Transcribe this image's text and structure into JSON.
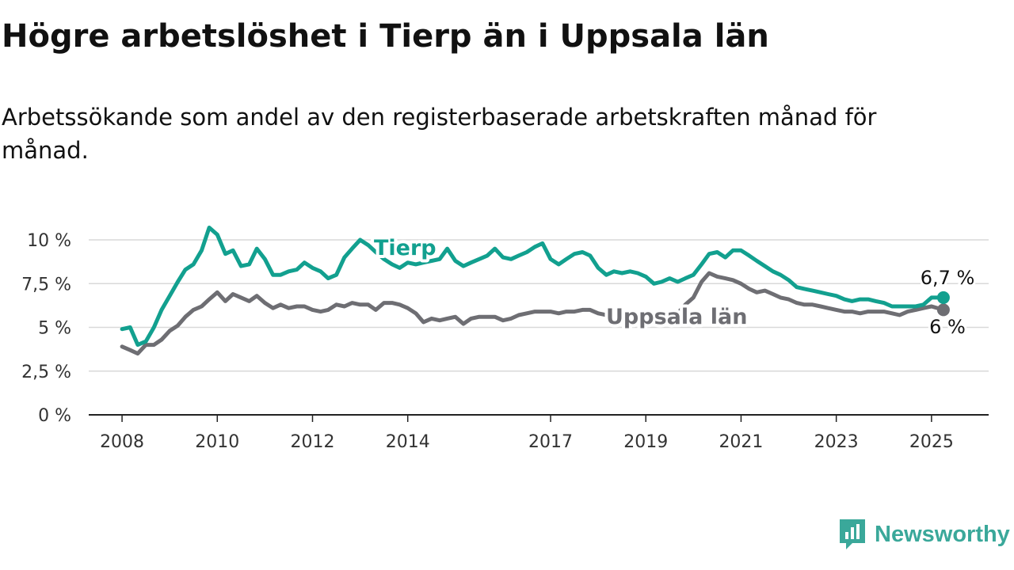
{
  "title": "Högre arbetslöshet i Tierp än i Uppsala län",
  "subtitle": "Arbetssökande som andel av den registerbaserade arbetskraften månad för månad.",
  "brand": {
    "name": "Newsworthy",
    "logo_icon": "newsworthy-bar-chart-icon",
    "color": "#3aa89a"
  },
  "chart_data": {
    "type": "line",
    "xlabel": "",
    "ylabel": "",
    "xlim": [
      2007.3,
      2026.2
    ],
    "ylim": [
      0,
      10
    ],
    "y_ticks": [
      {
        "value": 0,
        "label": "0 %"
      },
      {
        "value": 2.5,
        "label": "2,5 %"
      },
      {
        "value": 5,
        "label": "5 %"
      },
      {
        "value": 7.5,
        "label": "7,5 %"
      },
      {
        "value": 10,
        "label": "10 %"
      }
    ],
    "x_ticks": [
      {
        "value": 2008,
        "label": "2008"
      },
      {
        "value": 2010,
        "label": "2010"
      },
      {
        "value": 2012,
        "label": "2012"
      },
      {
        "value": 2014,
        "label": "2014"
      },
      {
        "value": 2017,
        "label": "2017"
      },
      {
        "value": 2019,
        "label": "2019"
      },
      {
        "value": 2021,
        "label": "2021"
      },
      {
        "value": 2023,
        "label": "2023"
      },
      {
        "value": 2025,
        "label": "2025"
      }
    ],
    "grid": "horizontal",
    "legend": "inline labels",
    "series": [
      {
        "name": "Tierp",
        "color": "#12a08f",
        "end_label": "6,7 %",
        "x": [
          2008.0,
          2008.17,
          2008.33,
          2008.5,
          2008.67,
          2008.83,
          2009.0,
          2009.17,
          2009.33,
          2009.5,
          2009.67,
          2009.83,
          2010.0,
          2010.17,
          2010.33,
          2010.5,
          2010.67,
          2010.83,
          2011.0,
          2011.17,
          2011.33,
          2011.5,
          2011.67,
          2011.83,
          2012.0,
          2012.17,
          2012.33,
          2012.5,
          2012.67,
          2012.83,
          2013.0,
          2013.17,
          2013.33,
          2013.5,
          2013.67,
          2013.83,
          2014.0,
          2014.17,
          2014.33,
          2014.5,
          2014.67,
          2014.83,
          2015.0,
          2015.17,
          2015.33,
          2015.5,
          2015.67,
          2015.83,
          2016.0,
          2016.17,
          2016.33,
          2016.5,
          2016.67,
          2016.83,
          2017.0,
          2017.17,
          2017.33,
          2017.5,
          2017.67,
          2017.83,
          2018.0,
          2018.17,
          2018.33,
          2018.5,
          2018.67,
          2018.83,
          2019.0,
          2019.17,
          2019.33,
          2019.5,
          2019.67,
          2019.83,
          2020.0,
          2020.17,
          2020.33,
          2020.5,
          2020.67,
          2020.83,
          2021.0,
          2021.17,
          2021.33,
          2021.5,
          2021.67,
          2021.83,
          2022.0,
          2022.17,
          2022.33,
          2022.5,
          2022.67,
          2022.83,
          2023.0,
          2023.17,
          2023.33,
          2023.5,
          2023.67,
          2023.83,
          2024.0,
          2024.17,
          2024.33,
          2024.5,
          2024.67,
          2024.83,
          2025.0,
          2025.25
        ],
        "y": [
          4.9,
          5.0,
          4.0,
          4.2,
          5.0,
          6.0,
          6.8,
          7.6,
          8.3,
          8.6,
          9.4,
          10.7,
          10.3,
          9.2,
          9.4,
          8.5,
          8.6,
          9.5,
          8.9,
          8.0,
          8.0,
          8.2,
          8.3,
          8.7,
          8.4,
          8.2,
          7.8,
          8.0,
          9.0,
          9.5,
          10.0,
          9.7,
          9.3,
          8.9,
          8.6,
          8.4,
          8.7,
          8.6,
          8.7,
          8.8,
          8.9,
          9.5,
          8.8,
          8.5,
          8.7,
          8.9,
          9.1,
          9.5,
          9.0,
          8.9,
          9.1,
          9.3,
          9.6,
          9.8,
          8.9,
          8.6,
          8.9,
          9.2,
          9.3,
          9.1,
          8.4,
          8.0,
          8.2,
          8.1,
          8.2,
          8.1,
          7.9,
          7.5,
          7.6,
          7.8,
          7.6,
          7.8,
          8.0,
          8.6,
          9.2,
          9.3,
          9.0,
          9.4,
          9.4,
          9.1,
          8.8,
          8.5,
          8.2,
          8.0,
          7.7,
          7.3,
          7.2,
          7.1,
          7.0,
          6.9,
          6.8,
          6.6,
          6.5,
          6.6,
          6.6,
          6.5,
          6.4,
          6.2,
          6.2,
          6.2,
          6.2,
          6.3,
          6.7,
          6.7
        ]
      },
      {
        "name": "Uppsala län",
        "color": "#6e6e73",
        "end_label": "6 %",
        "x": [
          2008.0,
          2008.17,
          2008.33,
          2008.5,
          2008.67,
          2008.83,
          2009.0,
          2009.17,
          2009.33,
          2009.5,
          2009.67,
          2009.83,
          2010.0,
          2010.17,
          2010.33,
          2010.5,
          2010.67,
          2010.83,
          2011.0,
          2011.17,
          2011.33,
          2011.5,
          2011.67,
          2011.83,
          2012.0,
          2012.17,
          2012.33,
          2012.5,
          2012.67,
          2012.83,
          2013.0,
          2013.17,
          2013.33,
          2013.5,
          2013.67,
          2013.83,
          2014.0,
          2014.17,
          2014.33,
          2014.5,
          2014.67,
          2014.83,
          2015.0,
          2015.17,
          2015.33,
          2015.5,
          2015.67,
          2015.83,
          2016.0,
          2016.17,
          2016.33,
          2016.5,
          2016.67,
          2016.83,
          2017.0,
          2017.17,
          2017.33,
          2017.5,
          2017.67,
          2017.83,
          2018.0,
          2018.17,
          2018.33,
          2018.5,
          2018.67,
          2018.83,
          2019.0,
          2019.17,
          2019.33,
          2019.5,
          2019.67,
          2019.83,
          2020.0,
          2020.17,
          2020.33,
          2020.5,
          2020.67,
          2020.83,
          2021.0,
          2021.17,
          2021.33,
          2021.5,
          2021.67,
          2021.83,
          2022.0,
          2022.17,
          2022.33,
          2022.5,
          2022.67,
          2022.83,
          2023.0,
          2023.17,
          2023.33,
          2023.5,
          2023.67,
          2023.83,
          2024.0,
          2024.17,
          2024.33,
          2024.5,
          2024.67,
          2024.83,
          2025.0,
          2025.25
        ],
        "y": [
          3.9,
          3.7,
          3.5,
          4.0,
          4.0,
          4.3,
          4.8,
          5.1,
          5.6,
          6.0,
          6.2,
          6.6,
          7.0,
          6.5,
          6.9,
          6.7,
          6.5,
          6.8,
          6.4,
          6.1,
          6.3,
          6.1,
          6.2,
          6.2,
          6.0,
          5.9,
          6.0,
          6.3,
          6.2,
          6.4,
          6.3,
          6.3,
          6.0,
          6.4,
          6.4,
          6.3,
          6.1,
          5.8,
          5.3,
          5.5,
          5.4,
          5.5,
          5.6,
          5.2,
          5.5,
          5.6,
          5.6,
          5.6,
          5.4,
          5.5,
          5.7,
          5.8,
          5.9,
          5.9,
          5.9,
          5.8,
          5.9,
          5.9,
          6.0,
          6.0,
          5.8,
          5.7,
          5.7,
          5.6,
          5.5,
          5.5,
          5.4,
          5.4,
          5.3,
          5.6,
          5.8,
          6.3,
          6.7,
          7.6,
          8.1,
          7.9,
          7.8,
          7.7,
          7.5,
          7.2,
          7.0,
          7.1,
          6.9,
          6.7,
          6.6,
          6.4,
          6.3,
          6.3,
          6.2,
          6.1,
          6.0,
          5.9,
          5.9,
          5.8,
          5.9,
          5.9,
          5.9,
          5.8,
          5.7,
          5.9,
          6.0,
          6.1,
          6.2,
          6.0
        ]
      }
    ]
  }
}
